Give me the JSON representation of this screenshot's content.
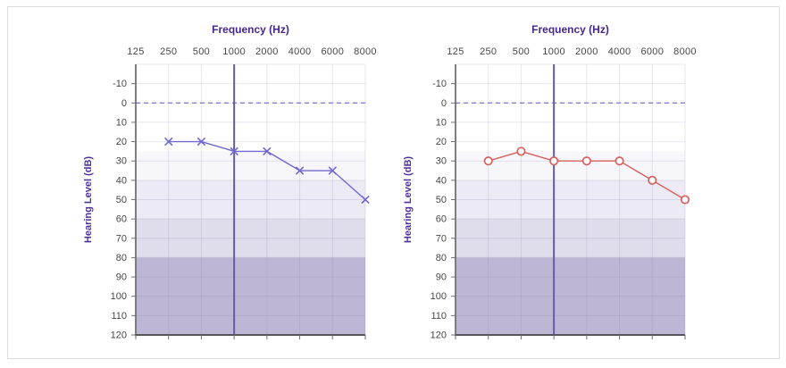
{
  "figure": {
    "name": "audiogram-comparison-figure"
  },
  "chart_data": [
    {
      "type": "line",
      "panel": "left",
      "title": "Frequency (Hz)",
      "ylabel": "Hearing Level (dB)",
      "x_categories": [
        "125",
        "250",
        "500",
        "1000",
        "2000",
        "4000",
        "6000",
        "8000"
      ],
      "y_ticks": [
        "-10",
        "0",
        "10",
        "20",
        "30",
        "40",
        "50",
        "60",
        "70",
        "80",
        "90",
        "100",
        "110",
        "120"
      ],
      "ylim": [
        -20,
        120
      ],
      "grid": true,
      "legend": "none",
      "title_color": "#46278f",
      "axis_label_color": "#50309b",
      "tick_label_color": "#474747",
      "zero_line": {
        "db": 0,
        "style": "dashed",
        "color": "#7b74c8"
      },
      "highlight_line": {
        "x": "1000",
        "color": "#675aa4"
      },
      "severity_bands": [
        {
          "from_db": 25,
          "to_db": 40,
          "color": "#f7f6fb"
        },
        {
          "from_db": 40,
          "to_db": 60,
          "color": "#eceaf4"
        },
        {
          "from_db": 60,
          "to_db": 80,
          "color": "#dfddeb"
        },
        {
          "from_db": 80,
          "to_db": 120,
          "color": "#bdb7d5"
        }
      ],
      "series": [
        {
          "name": "hearing-threshold-x-markers",
          "marker": "x",
          "color": "#7069cf",
          "points": [
            {
              "x": "250",
              "db": 20
            },
            {
              "x": "500",
              "db": 20
            },
            {
              "x": "1000",
              "db": 25
            },
            {
              "x": "2000",
              "db": 25
            },
            {
              "x": "4000",
              "db": 35
            },
            {
              "x": "6000",
              "db": 35
            },
            {
              "x": "8000",
              "db": 50
            }
          ]
        }
      ]
    },
    {
      "type": "line",
      "panel": "right",
      "title": "Frequency (Hz)",
      "ylabel": "Hearing Level (dB)",
      "x_categories": [
        "125",
        "250",
        "500",
        "1000",
        "2000",
        "4000",
        "6000",
        "8000"
      ],
      "y_ticks": [
        "-10",
        "0",
        "10",
        "20",
        "30",
        "40",
        "50",
        "60",
        "70",
        "80",
        "90",
        "100",
        "110",
        "120"
      ],
      "ylim": [
        -20,
        120
      ],
      "grid": true,
      "legend": "none",
      "title_color": "#46278f",
      "axis_label_color": "#50309b",
      "tick_label_color": "#474747",
      "zero_line": {
        "db": 0,
        "style": "dashed",
        "color": "#7b74c8"
      },
      "highlight_line": {
        "x": "1000",
        "color": "#675aa4"
      },
      "severity_bands": [
        {
          "from_db": 25,
          "to_db": 40,
          "color": "#f7f6fb"
        },
        {
          "from_db": 40,
          "to_db": 60,
          "color": "#eceaf4"
        },
        {
          "from_db": 60,
          "to_db": 80,
          "color": "#dfddeb"
        },
        {
          "from_db": 80,
          "to_db": 120,
          "color": "#bdb7d5"
        }
      ],
      "series": [
        {
          "name": "hearing-threshold-circle-markers",
          "marker": "circle",
          "color": "#d8605c",
          "points": [
            {
              "x": "250",
              "db": 30
            },
            {
              "x": "500",
              "db": 25
            },
            {
              "x": "1000",
              "db": 30
            },
            {
              "x": "2000",
              "db": 30
            },
            {
              "x": "4000",
              "db": 30
            },
            {
              "x": "6000",
              "db": 40
            },
            {
              "x": "8000",
              "db": 50
            }
          ]
        }
      ]
    }
  ]
}
